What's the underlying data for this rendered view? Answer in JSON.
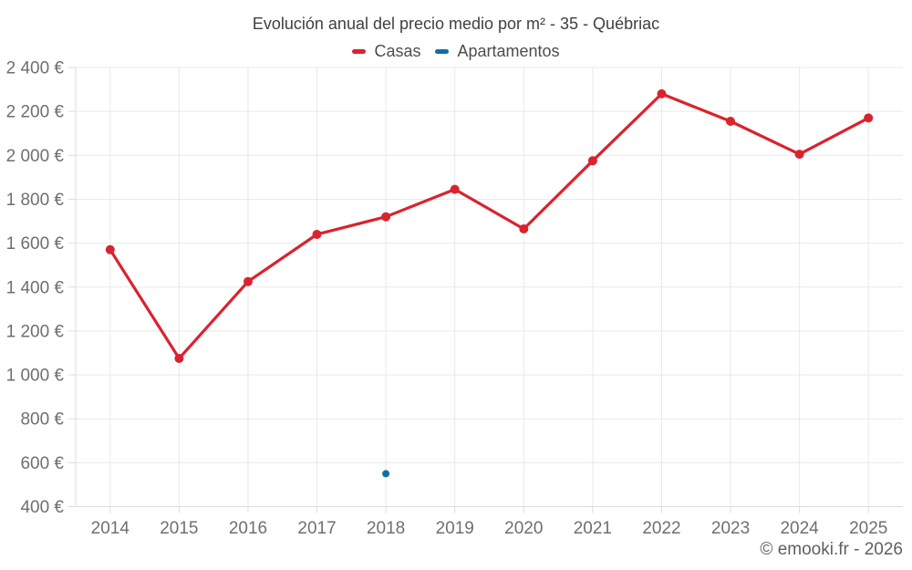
{
  "title": "Evolución anual del precio medio por m² - 35 - Québriac",
  "legend": {
    "items": [
      {
        "label": "Casas",
        "color": "#d9232e"
      },
      {
        "label": "Apartamentos",
        "color": "#0e70a3"
      }
    ]
  },
  "footer": {
    "credit": "© emooki.fr - 2026"
  },
  "colors": {
    "grid": "#e9e9e9",
    "axis": "#dcdcdc",
    "tick": "#dcdcdc",
    "tick_label": "#6f6f6f",
    "title_text": "#404040",
    "legend_text": "#4d4d4d",
    "footer_text": "#5f5f5f"
  },
  "chart_data": {
    "type": "line",
    "title": "Evolución anual del precio medio por m² - 35 - Québriac",
    "categories": [
      "2014",
      "2015",
      "2016",
      "2017",
      "2018",
      "2019",
      "2020",
      "2021",
      "2022",
      "2023",
      "2024",
      "2025"
    ],
    "series": [
      {
        "name": "Casas",
        "color": "#d9232e",
        "values": [
          1570,
          1075,
          1425,
          1640,
          1720,
          1845,
          1665,
          1975,
          2280,
          2155,
          2005,
          2170
        ]
      },
      {
        "name": "Apartamentos",
        "color": "#0e70a3",
        "values": [
          null,
          null,
          null,
          null,
          550,
          null,
          null,
          null,
          null,
          null,
          null,
          null
        ]
      }
    ],
    "unit": "€",
    "ylim": [
      400,
      2400
    ],
    "y_tick_step": 200,
    "y_ticks": [
      {
        "v": 400,
        "label": "400 €"
      },
      {
        "v": 600,
        "label": "600 €"
      },
      {
        "v": 800,
        "label": "800 €"
      },
      {
        "v": 1000,
        "label": "1 000 €"
      },
      {
        "v": 1200,
        "label": "1 200 €"
      },
      {
        "v": 1400,
        "label": "1 400 €"
      },
      {
        "v": 1600,
        "label": "1 600 €"
      },
      {
        "v": 1800,
        "label": "1 800 €"
      },
      {
        "v": 2000,
        "label": "2 000 €"
      },
      {
        "v": 2200,
        "label": "2 200 €"
      },
      {
        "v": 2400,
        "label": "2 400 €"
      }
    ],
    "grid": true,
    "legend_position": "top"
  }
}
